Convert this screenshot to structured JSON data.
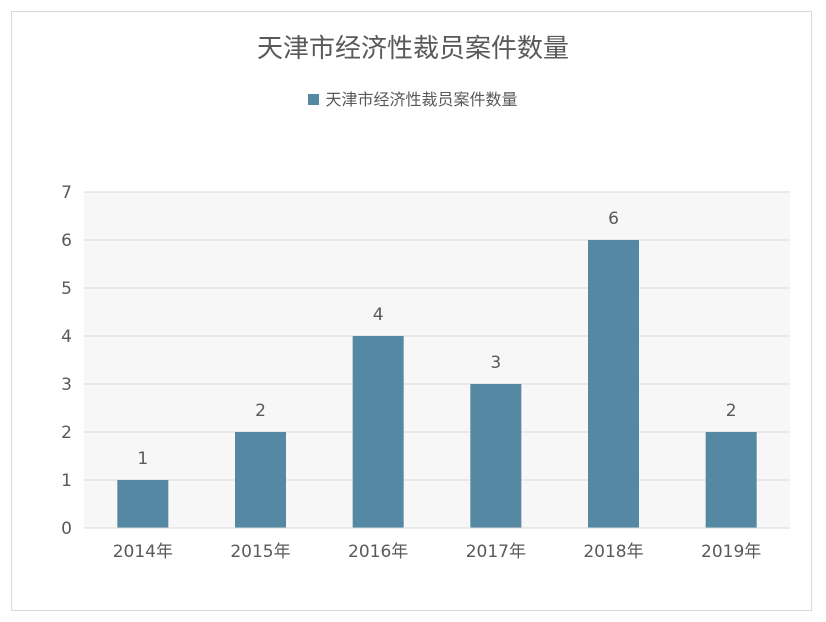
{
  "chart_data": {
    "type": "bar",
    "title": "天津市经济性裁员案件数量",
    "categories": [
      "2014年",
      "2015年",
      "2016年",
      "2017年",
      "2018年",
      "2019年"
    ],
    "series": [
      {
        "name": "天津市经济性裁员案件数量",
        "values": [
          1,
          2,
          4,
          3,
          6,
          2
        ]
      }
    ],
    "xlabel": "",
    "ylabel": "",
    "ylim": [
      0,
      7
    ],
    "yticks": [
      0,
      1,
      2,
      3,
      4,
      5,
      6,
      7
    ],
    "grid": true,
    "legend": "top-center",
    "data_labels": true,
    "colors": {
      "bar": "#5588a3",
      "plot_background": "#f7f7f7",
      "gridline": "#d9d9d9",
      "text": "#595959"
    }
  }
}
